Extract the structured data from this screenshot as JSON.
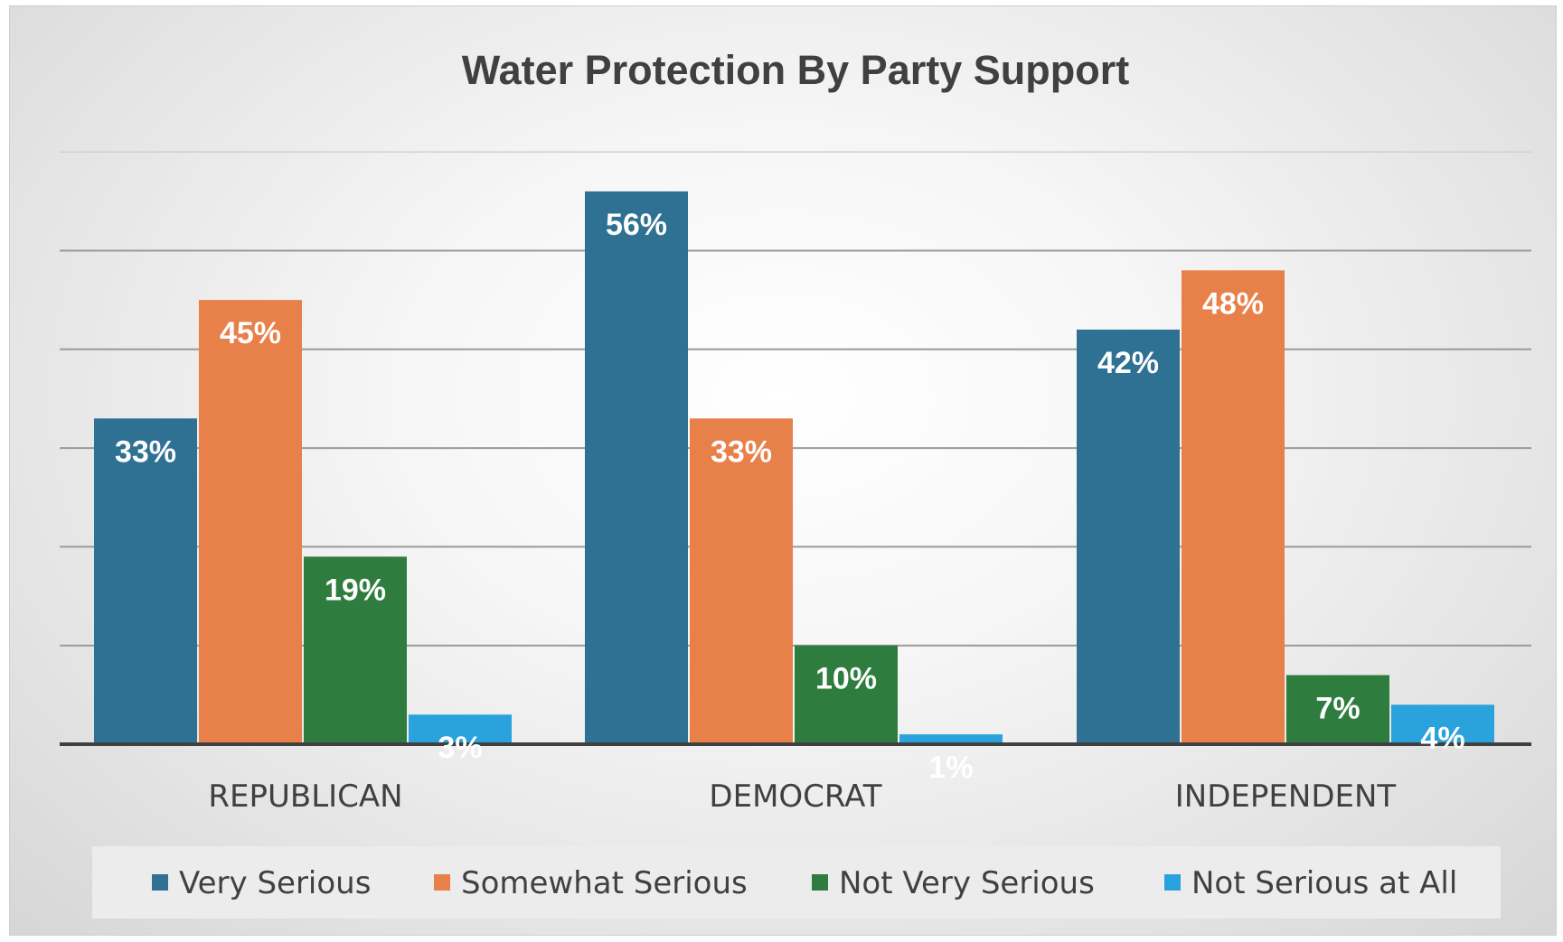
{
  "chart_data": {
    "type": "bar",
    "title": "Water Protection By Party Support",
    "categories": [
      "REPUBLICAN",
      "DEMOCRAT",
      "INDEPENDENT"
    ],
    "series": [
      {
        "name": "Very Serious",
        "color": "#2e7192",
        "values": [
          33,
          56,
          42
        ],
        "labels": [
          "33%",
          "56%",
          "42%"
        ]
      },
      {
        "name": "Somewhat Serious",
        "color": "#e8804a",
        "values": [
          45,
          33,
          48
        ],
        "labels": [
          "45%",
          "33%",
          "48%"
        ]
      },
      {
        "name": "Not Very Serious",
        "color": "#2f7d3e",
        "values": [
          19,
          10,
          7
        ],
        "labels": [
          "19%",
          "10%",
          "7%"
        ]
      },
      {
        "name": "Not Serious at All",
        "color": "#2aa3dc",
        "values": [
          3,
          1,
          4
        ],
        "labels": [
          "3%",
          "1%",
          "4%"
        ]
      }
    ],
    "ylim": [
      0,
      60
    ],
    "y_axis_visible": false,
    "grid": true,
    "legend_position": "bottom",
    "data_labels": "inside-end",
    "colors": {
      "gridline": "#9a9a9a",
      "axis": "#404040",
      "legend_background": "#ececec"
    }
  }
}
